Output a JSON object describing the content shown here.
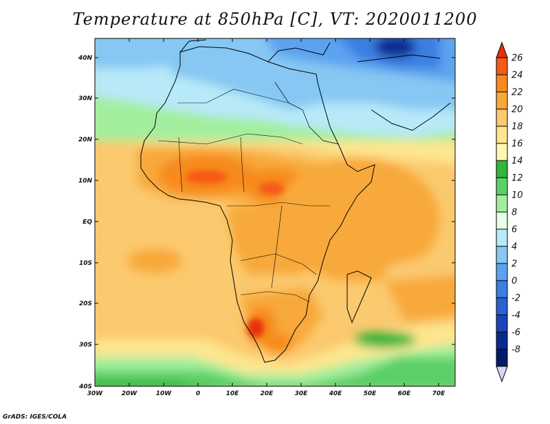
{
  "title": "Temperature at 850hPa [C], VT: 2020011200",
  "credit": "GrADS: IGES/COLA",
  "map": {
    "lat_labels": [
      "40N",
      "30N",
      "20N",
      "10N",
      "EQ",
      "10S",
      "20S",
      "30S",
      "40S"
    ],
    "lon_labels": [
      "30W",
      "20W",
      "10W",
      "0",
      "10E",
      "20E",
      "30E",
      "40E",
      "50E",
      "60E",
      "70E"
    ]
  },
  "colorbar": {
    "labels": [
      "26",
      "24",
      "22",
      "20",
      "18",
      "16",
      "14",
      "12",
      "10",
      "8",
      "6",
      "4",
      "2",
      "0",
      "-2",
      "-4",
      "-6",
      "-8"
    ],
    "colors": [
      "#e8300c",
      "#f65a14",
      "#f78a1f",
      "#f8a93a",
      "#fbc96e",
      "#fde68f",
      "#fff6b4",
      "#33b53a",
      "#5bd068",
      "#a3ee9e",
      "#e6ffe8",
      "#b7e9f8",
      "#86c7f3",
      "#5ca3ef",
      "#3b7fe2",
      "#2a62cf",
      "#1b44b8",
      "#0b2a8f",
      "#061a6a",
      "#d9d4f4"
    ]
  }
}
